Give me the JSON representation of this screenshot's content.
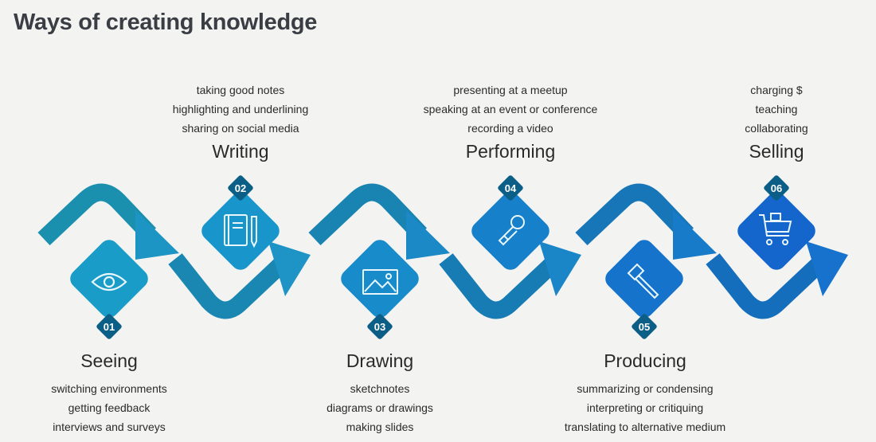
{
  "title": "Ways of creating knowledge",
  "stages": [
    {
      "number": "01",
      "name": "Seeing",
      "icon": "eye-icon",
      "color": "#1a9cc8",
      "items": [
        "switching environments",
        "getting feedback",
        "interviews and surveys"
      ]
    },
    {
      "number": "02",
      "name": "Writing",
      "icon": "notebook-pencil-icon",
      "color": "#1896cc",
      "items": [
        "taking good notes",
        "highlighting and underlining",
        "sharing on social media"
      ]
    },
    {
      "number": "03",
      "name": "Drawing",
      "icon": "image-icon",
      "color": "#188ccb",
      "items": [
        "sketchnotes",
        "diagrams or drawings",
        "making slides"
      ]
    },
    {
      "number": "04",
      "name": "Performing",
      "icon": "microphone-icon",
      "color": "#1780cb",
      "items": [
        "presenting at a meetup",
        "speaking at an event or conference",
        "recording a video"
      ]
    },
    {
      "number": "05",
      "name": "Producing",
      "icon": "hammer-icon",
      "color": "#1573cc",
      "items": [
        "summarizing or condensing",
        "interpreting or critiquing",
        "translating to alternative medium"
      ]
    },
    {
      "number": "06",
      "name": "Selling",
      "icon": "shopping-cart-icon",
      "color": "#1466cc",
      "items": [
        "charging $",
        "teaching",
        "collaborating"
      ]
    }
  ]
}
